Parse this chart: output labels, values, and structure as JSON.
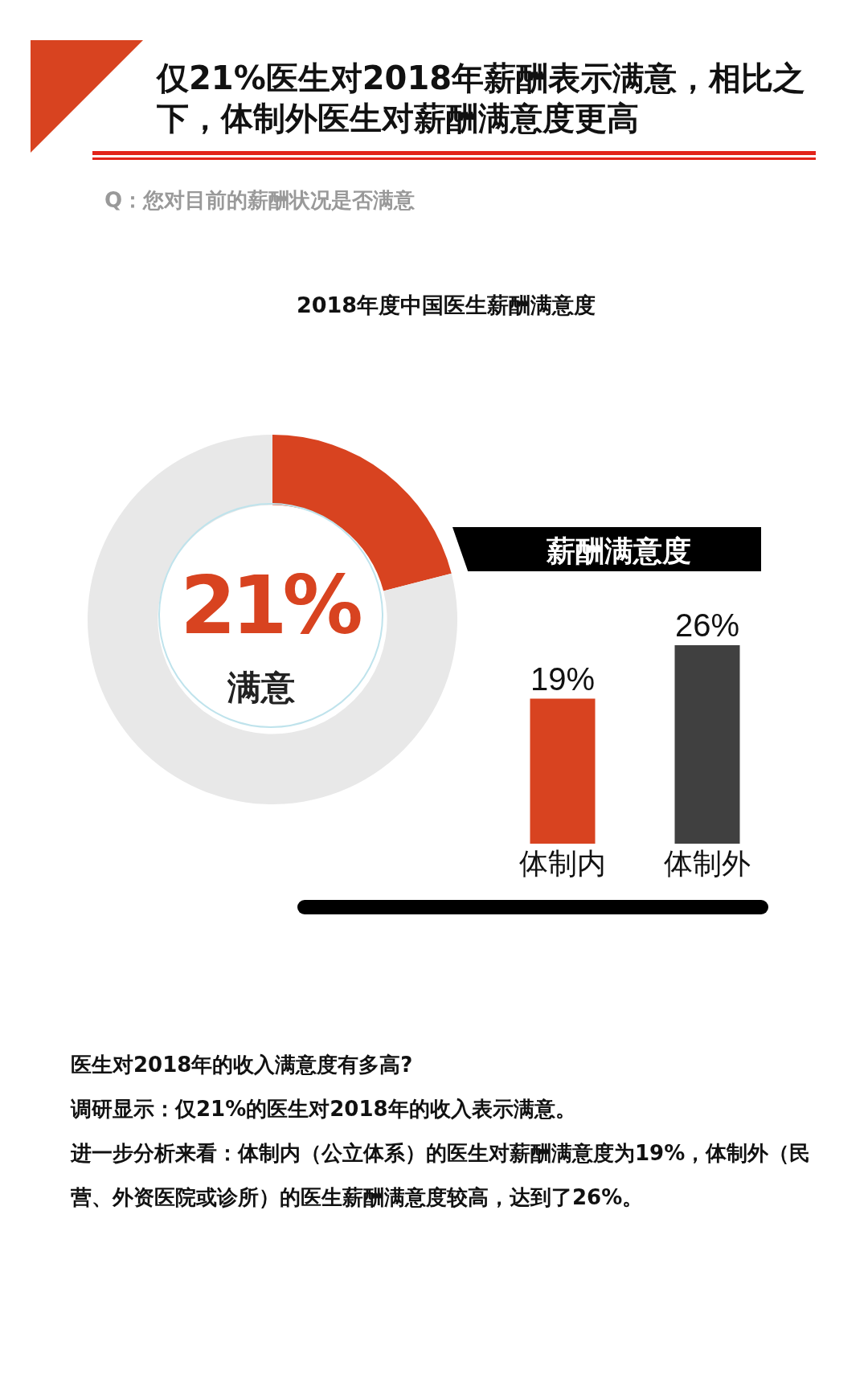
{
  "chart_data": [
    {
      "type": "donut",
      "title": "仅21%医生对2018年薪酬表示满意，相比之下，体制外医生对薪酬满意度更高",
      "subtitle": "Q：您对目前的薪酬状况是否满意",
      "annotations": [
        "2018年度中国医生薪酬满意度"
      ],
      "categories": [
        "满意",
        null
      ],
      "values": [
        21,
        79
      ],
      "colors": [
        "#d84320",
        "#e8e8e8"
      ],
      "value_labels": [
        "21%",
        null
      ]
    },
    {
      "type": "bar",
      "title": "薪酬满意度",
      "categories": [
        "体制内",
        "体制外"
      ],
      "values": [
        19,
        26
      ],
      "colors": [
        "#d84320",
        "#404040"
      ],
      "value_labels": [
        "19%",
        "26%"
      ],
      "annotations": [
        "医生对2018年的收入满意度有多高?",
        "调研显示：仅21%的医生对2018年的收入表示满意。",
        "进一步分析来看：体制内（公立体系）的医生对薪酬满意度为19%，体制外（民营、外资医院或诊所）的医生薪酬满意度较高，达到了26%。"
      ]
    }
  ]
}
